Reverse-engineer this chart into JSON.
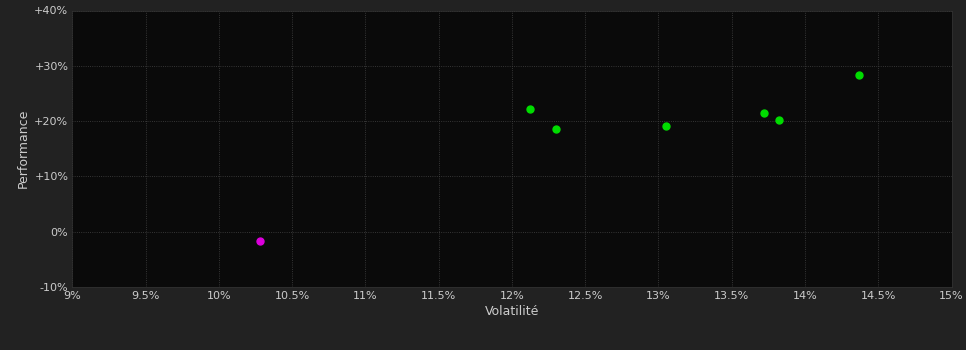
{
  "background_color": "#222222",
  "plot_bg_color": "#0a0a0a",
  "grid_color": "#444444",
  "text_color": "#cccccc",
  "xlabel": "Volatilité",
  "ylabel": "Performance",
  "xlim": [
    0.09,
    0.15
  ],
  "ylim": [
    -0.1,
    0.4
  ],
  "xticks": [
    0.09,
    0.095,
    0.1,
    0.105,
    0.11,
    0.115,
    0.12,
    0.125,
    0.13,
    0.135,
    0.14,
    0.145,
    0.15
  ],
  "yticks": [
    -0.1,
    0.0,
    0.1,
    0.2,
    0.3,
    0.4
  ],
  "ytick_labels": [
    "-10%",
    "0%",
    "+10%",
    "+20%",
    "+30%",
    "+40%"
  ],
  "xtick_labels": [
    "9%",
    "9.5%",
    "10%",
    "10.5%",
    "11%",
    "11.5%",
    "12%",
    "12.5%",
    "13%",
    "13.5%",
    "14%",
    "14.5%",
    "15%"
  ],
  "points_green": [
    [
      0.1212,
      0.222
    ],
    [
      0.123,
      0.186
    ],
    [
      0.1305,
      0.192
    ],
    [
      0.1372,
      0.214
    ],
    [
      0.1382,
      0.202
    ],
    [
      0.1437,
      0.283
    ]
  ],
  "points_magenta": [
    [
      0.1028,
      -0.017
    ]
  ],
  "green_color": "#00dd00",
  "magenta_color": "#dd00dd",
  "marker_size": 18,
  "marker_style": "o"
}
